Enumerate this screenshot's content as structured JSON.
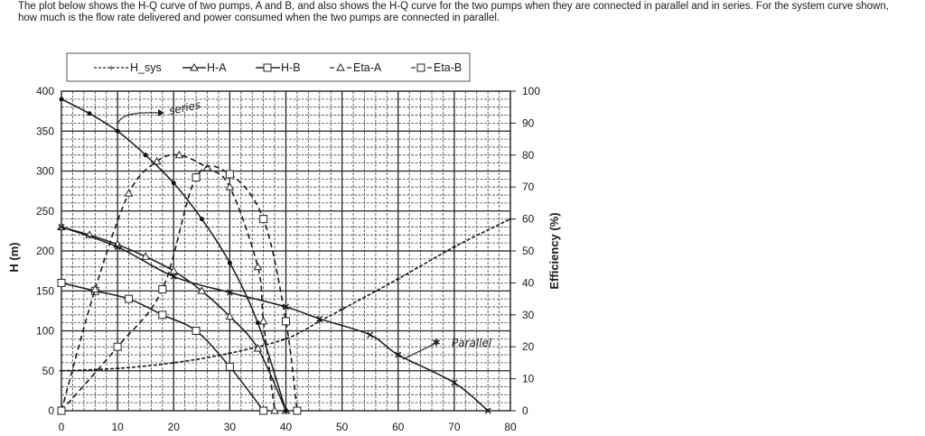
{
  "question": {
    "line1": "The plot below shows the H-Q curve of two pumps, A and B, and also shows the H-Q curve for the two pumps when they are connected in parallel and in series. For the system curve shown,",
    "line2": "how much is the flow rate delivered and power consumed when the two pumps are connected in parallel."
  },
  "legend": {
    "items": [
      {
        "key": "hsys",
        "label": "H_sys"
      },
      {
        "key": "ha",
        "label": "H-A"
      },
      {
        "key": "hb",
        "label": "H-B"
      },
      {
        "key": "etaa",
        "label": "Eta-A"
      },
      {
        "key": "etab",
        "label": "Eta-B"
      }
    ]
  },
  "annotations": {
    "series": "series",
    "parallel": "Parallel"
  },
  "chart_data": {
    "type": "line",
    "title": "",
    "xlabel": "",
    "ylabel": "H (m)",
    "y2label": "Efficiency (%)",
    "xlim": [
      0,
      80
    ],
    "ylim": [
      0,
      400
    ],
    "y2lim": [
      0,
      100
    ],
    "xticks": [
      0,
      10,
      20,
      30,
      40,
      50,
      60,
      70,
      80
    ],
    "yticks": [
      0,
      50,
      100,
      150,
      200,
      250,
      300,
      350,
      400
    ],
    "y2ticks": [
      0,
      10,
      20,
      30,
      40,
      50,
      60,
      70,
      80,
      90,
      100
    ],
    "grid": true,
    "legend_position": "top",
    "series": [
      {
        "name": "H_sys",
        "axis": "left",
        "style": "dashed",
        "marker": "plus",
        "x": [
          0,
          10,
          20,
          30,
          40,
          46,
          50,
          60,
          70,
          80
        ],
        "y": [
          50,
          53,
          60,
          72,
          90,
          112,
          127,
          165,
          205,
          240
        ]
      },
      {
        "name": "H-A",
        "axis": "left",
        "style": "solid",
        "marker": "triangle",
        "x": [
          0,
          5,
          10,
          15,
          20,
          25,
          30,
          35,
          40
        ],
        "y": [
          230,
          220,
          208,
          193,
          175,
          150,
          118,
          78,
          0
        ]
      },
      {
        "name": "H-B",
        "axis": "left",
        "style": "solid",
        "marker": "square",
        "x": [
          0,
          6,
          12,
          18,
          24,
          30,
          36
        ],
        "y": [
          160,
          150,
          140,
          120,
          100,
          55,
          0
        ]
      },
      {
        "name": "Eta-A",
        "axis": "right",
        "style": "dashed",
        "marker": "triangle",
        "x": [
          0,
          6,
          12,
          17,
          21,
          26,
          30,
          35,
          36,
          38
        ],
        "y": [
          0,
          38,
          68,
          78,
          80,
          76,
          70,
          45,
          28,
          0
        ]
      },
      {
        "name": "Eta-B",
        "axis": "right",
        "style": "dashed",
        "marker": "square",
        "x": [
          0,
          10,
          18,
          24,
          30,
          36,
          40,
          42
        ],
        "y": [
          0,
          20,
          38,
          73,
          74,
          60,
          28,
          0
        ]
      },
      {
        "name": "Series (hand-drawn)",
        "axis": "left",
        "style": "solid",
        "marker": "dot",
        "x": [
          0,
          5,
          10,
          15,
          20,
          25,
          30,
          35,
          40
        ],
        "y": [
          390,
          372,
          350,
          320,
          285,
          240,
          185,
          110,
          0
        ]
      },
      {
        "name": "Parallel (hand-drawn)",
        "axis": "left",
        "style": "solid",
        "marker": "x",
        "x": [
          0,
          10,
          20,
          30,
          40,
          46,
          55,
          60,
          70,
          76
        ],
        "y": [
          230,
          205,
          168,
          148,
          130,
          115,
          95,
          70,
          35,
          0
        ]
      }
    ]
  }
}
